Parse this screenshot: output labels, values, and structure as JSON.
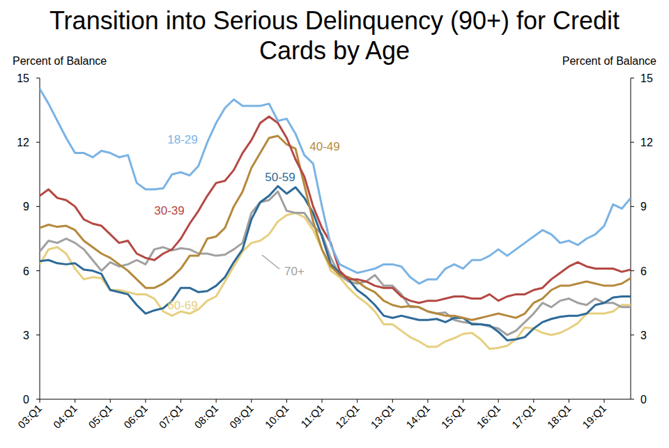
{
  "chart_data": {
    "type": "line",
    "title": "Transition into Serious Delinquency (90+) for Credit Cards by Age",
    "y_label": "Percent of Balance",
    "y2_label": "Percent of Balance",
    "categories": [
      "03:Q1",
      null,
      null,
      null,
      "04:Q1",
      null,
      null,
      null,
      "05:Q1",
      null,
      null,
      null,
      "06:Q1",
      null,
      null,
      null,
      "07:Q1",
      null,
      null,
      null,
      "08:Q1",
      null,
      null,
      null,
      "09:Q1",
      null,
      null,
      null,
      "10:Q1",
      null,
      null,
      null,
      "11:Q1",
      null,
      null,
      null,
      "12:Q1",
      null,
      null,
      null,
      "13:Q1",
      null,
      null,
      null,
      "14:Q1",
      null,
      null,
      null,
      "15:Q1",
      null,
      null,
      null,
      "16:Q1",
      null,
      null,
      null,
      "17:Q1",
      null,
      null,
      null,
      "18:Q1",
      null,
      null,
      null,
      "19:Q1",
      null,
      null,
      null
    ],
    "ylim": [
      0,
      15
    ],
    "yticks": [
      0,
      3,
      6,
      9,
      12,
      15
    ],
    "y2lim": [
      0,
      15
    ],
    "y2ticks": [
      0,
      3,
      6,
      9,
      12,
      15
    ],
    "grid": false,
    "series": [
      {
        "name": "18-29",
        "color": "#7ab3e4",
        "values": [
          14.5,
          13.8,
          13.0,
          12.2,
          11.5,
          11.5,
          11.3,
          11.6,
          11.5,
          11.3,
          11.4,
          10.1,
          9.8,
          9.8,
          9.85,
          10.5,
          10.6,
          10.45,
          10.9,
          12.0,
          12.9,
          13.6,
          14.0,
          13.7,
          13.7,
          13.7,
          13.8,
          13.0,
          13.1,
          12.4,
          11.4,
          11.0,
          9.0,
          7.2,
          6.3,
          6.1,
          5.9,
          6.0,
          6.1,
          6.3,
          6.3,
          6.2,
          5.7,
          5.4,
          5.6,
          5.6,
          6.1,
          6.3,
          6.1,
          6.5,
          6.5,
          6.7,
          7.0,
          6.7,
          7.0,
          7.3,
          7.6,
          7.9,
          7.7,
          7.3,
          7.4,
          7.2,
          7.5,
          7.7,
          8.1,
          9.1,
          8.9,
          9.4
        ]
      },
      {
        "name": "30-39",
        "color": "#b44843",
        "values": [
          9.5,
          9.8,
          9.4,
          9.3,
          9.0,
          8.4,
          8.2,
          8.1,
          7.7,
          7.3,
          7.4,
          6.8,
          6.6,
          6.5,
          6.8,
          7.0,
          7.5,
          8.2,
          8.8,
          9.5,
          10.1,
          10.2,
          10.7,
          11.5,
          12.1,
          12.9,
          13.2,
          12.9,
          12.2,
          11.2,
          10.4,
          9.0,
          8.0,
          7.3,
          6.0,
          5.6,
          5.6,
          5.5,
          5.3,
          5.2,
          5.2,
          4.8,
          4.6,
          4.5,
          4.6,
          4.6,
          4.7,
          4.8,
          4.8,
          4.7,
          4.7,
          4.9,
          4.6,
          4.8,
          4.9,
          4.9,
          5.1,
          5.2,
          5.6,
          5.9,
          6.2,
          6.4,
          6.2,
          6.1,
          6.1,
          6.1,
          5.95,
          6.05
        ]
      },
      {
        "name": "40-49",
        "color": "#b4893c",
        "values": [
          8.0,
          8.15,
          8.05,
          8.1,
          7.9,
          7.4,
          7.1,
          6.8,
          6.6,
          6.3,
          6.0,
          5.6,
          5.2,
          5.2,
          5.4,
          5.7,
          6.1,
          6.7,
          6.7,
          7.5,
          7.6,
          8.0,
          9.0,
          9.7,
          10.8,
          11.5,
          12.2,
          12.3,
          11.9,
          11.7,
          10.0,
          8.3,
          7.0,
          6.2,
          5.8,
          5.7,
          5.5,
          5.2,
          5.0,
          4.6,
          4.4,
          4.3,
          4.35,
          4.3,
          4.1,
          4.0,
          3.9,
          3.9,
          3.8,
          3.7,
          3.8,
          3.9,
          4.0,
          3.9,
          3.8,
          4.0,
          4.5,
          4.7,
          5.1,
          5.3,
          5.3,
          5.4,
          5.5,
          5.4,
          5.3,
          5.3,
          5.4,
          5.65
        ]
      },
      {
        "name": "50-59",
        "color": "#2d6a98",
        "values": [
          6.45,
          6.5,
          6.35,
          6.3,
          6.35,
          6.05,
          6.0,
          5.85,
          5.1,
          5.0,
          4.9,
          4.4,
          4.0,
          4.15,
          4.25,
          4.6,
          5.2,
          5.2,
          5.0,
          5.05,
          5.3,
          5.7,
          6.4,
          7.0,
          8.4,
          9.2,
          9.5,
          9.95,
          9.6,
          9.9,
          9.4,
          8.7,
          7.6,
          6.3,
          5.9,
          5.6,
          5.1,
          4.8,
          4.4,
          3.9,
          3.8,
          3.9,
          3.8,
          3.7,
          3.7,
          3.75,
          3.6,
          3.8,
          3.8,
          3.5,
          3.5,
          3.45,
          3.15,
          2.75,
          2.8,
          2.9,
          3.3,
          3.6,
          3.75,
          3.85,
          3.9,
          3.9,
          4.0,
          4.4,
          4.5,
          4.75,
          4.8,
          4.8
        ]
      },
      {
        "name": "60-69",
        "color": "#e6cf7e",
        "values": [
          6.3,
          7.0,
          7.1,
          6.8,
          6.1,
          5.6,
          5.7,
          5.65,
          5.1,
          5.1,
          5.0,
          4.9,
          4.9,
          4.7,
          4.1,
          3.9,
          4.1,
          4.0,
          4.2,
          4.6,
          4.8,
          5.5,
          6.2,
          6.9,
          7.3,
          7.4,
          7.7,
          8.3,
          8.6,
          8.7,
          8.5,
          7.9,
          7.0,
          6.0,
          5.7,
          5.2,
          4.8,
          4.5,
          4.1,
          3.5,
          3.5,
          3.2,
          2.9,
          2.7,
          2.45,
          2.45,
          2.7,
          2.85,
          3.05,
          3.1,
          2.8,
          2.35,
          2.4,
          2.5,
          2.8,
          3.35,
          3.3,
          3.1,
          3.0,
          3.1,
          3.3,
          3.55,
          4.0,
          4.0,
          4.0,
          4.1,
          4.4,
          4.4
        ]
      },
      {
        "name": "70+",
        "color": "#a0a0a0",
        "values": [
          6.9,
          7.4,
          7.3,
          7.5,
          7.3,
          7.0,
          6.5,
          6.0,
          6.4,
          6.2,
          6.3,
          6.5,
          6.3,
          7.0,
          7.1,
          6.95,
          7.05,
          7.0,
          6.8,
          6.8,
          6.7,
          6.75,
          7.0,
          7.3,
          8.7,
          9.2,
          9.3,
          9.7,
          8.8,
          8.7,
          8.7,
          8.1,
          7.7,
          6.6,
          5.8,
          5.5,
          5.4,
          5.5,
          5.8,
          5.3,
          5.3,
          4.9,
          4.3,
          4.3,
          4.1,
          4.0,
          4.05,
          3.7,
          3.6,
          3.55,
          3.5,
          3.4,
          3.3,
          3.0,
          3.2,
          3.6,
          4.0,
          4.5,
          4.3,
          4.6,
          4.7,
          4.5,
          4.4,
          4.7,
          4.5,
          4.5,
          4.3,
          4.3
        ]
      }
    ]
  }
}
